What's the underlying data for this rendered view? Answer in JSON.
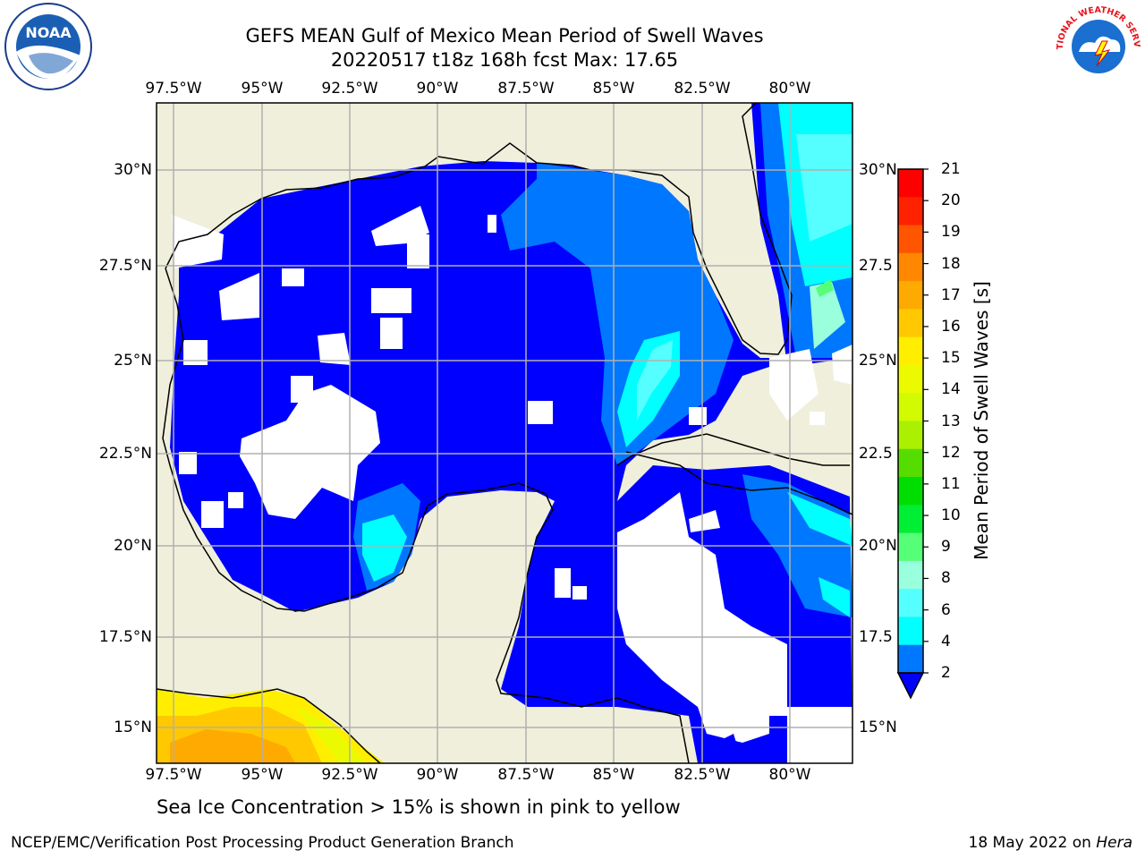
{
  "title": {
    "line1": "GEFS MEAN Gulf of Mexico Mean Period of Swell Waves",
    "line2": "20220517 t18z 168h fcst   Max: 17.65"
  },
  "map": {
    "lon_ticks": [
      "97.5°W",
      "95°W",
      "92.5°W",
      "90°W",
      "87.5°W",
      "85°W",
      "82.5°W",
      "80°W"
    ],
    "lat_ticks_left": [
      "30°N",
      "27.5°N",
      "25°N",
      "22.5°N",
      "20°N",
      "17.5°N",
      "15°N"
    ],
    "lat_ticks_right": [
      "30°N",
      "27.5",
      "25°N",
      "22.5",
      "20°N",
      "17.5",
      "15°N"
    ],
    "colors": {
      "land": "#efefdc",
      "grid": "#b0b0b0",
      "sea_low": "#0000ff"
    }
  },
  "colorbar": {
    "label": "Mean Period of Swell Waves [s]",
    "ticks": [
      "21",
      "20",
      "19",
      "18",
      "17",
      "16",
      "15",
      "14",
      "13",
      "12",
      "11",
      "10",
      "9",
      "8",
      "6",
      "4",
      "2"
    ],
    "colors": [
      "#ff0000",
      "#ff2200",
      "#ff5500",
      "#ff8800",
      "#ffaa00",
      "#ffc800",
      "#ffee00",
      "#ecfa00",
      "#d2fa00",
      "#aaf000",
      "#55dd00",
      "#00dd00",
      "#00ee33",
      "#55ff77",
      "#99ffdd",
      "#55ffff",
      "#00ffff",
      "#0077ff",
      "#0000ff"
    ]
  },
  "subtitle": "Sea Ice Concentration > 15% is shown in pink to yellow",
  "footer": {
    "left": "NCEP/EMC/Verification Post Processing Product Generation Branch",
    "right_date": "18 May 2022 on ",
    "right_host": "Hera"
  },
  "logos": {
    "noaa": "NOAA",
    "nws": "NATIONAL WEATHER SERVICE"
  }
}
